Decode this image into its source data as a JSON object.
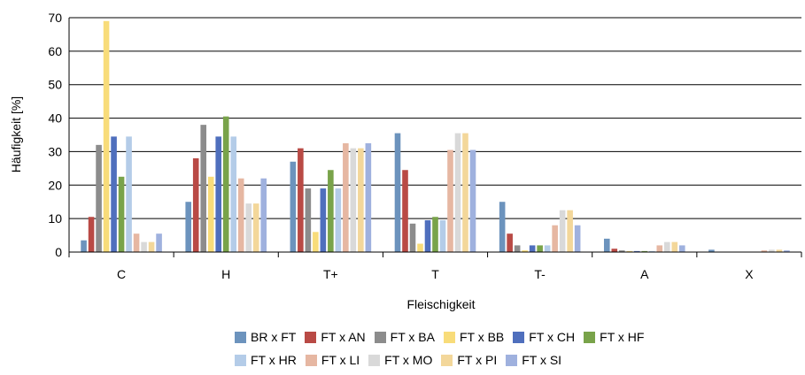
{
  "chart_data": {
    "type": "bar",
    "xlabel": "Fleischigkeit",
    "ylabel": "Häufigkeit [%]",
    "ylim": [
      0,
      70
    ],
    "yticks": [
      "0",
      "10",
      "20",
      "30",
      "40",
      "50",
      "60",
      "70"
    ],
    "grid": true,
    "legend_position": "bottom",
    "categories": [
      "C",
      "H",
      "T+",
      "T",
      "T-",
      "A",
      "X"
    ],
    "series": [
      {
        "name": "BR x FT",
        "color": "#6c93bd",
        "values": [
          3.5,
          15,
          27,
          35.5,
          15,
          4,
          0.7
        ]
      },
      {
        "name": "FT x AN",
        "color": "#b94a45",
        "values": [
          10.5,
          28,
          31,
          24.5,
          5.5,
          1,
          0
        ]
      },
      {
        "name": "FT x BA",
        "color": "#8c8c8c",
        "values": [
          32,
          38,
          19,
          8.5,
          2,
          0.5,
          0
        ]
      },
      {
        "name": "FT x BB",
        "color": "#f8dc7a",
        "values": [
          69,
          22.5,
          6,
          2.5,
          0.5,
          0.3,
          0
        ]
      },
      {
        "name": "FT x CH",
        "color": "#4f6fbd",
        "values": [
          34.5,
          34.5,
          19,
          9.5,
          2,
          0.3,
          0
        ]
      },
      {
        "name": "FT x HF",
        "color": "#79a34a",
        "values": [
          22.5,
          40.5,
          24.5,
          10.5,
          2,
          0.3,
          0
        ]
      },
      {
        "name": "FT x HR",
        "color": "#b4cce8",
        "values": [
          34.5,
          34.5,
          19,
          9.5,
          2,
          0.3,
          0
        ]
      },
      {
        "name": "FT x LI",
        "color": "#e6b7a2",
        "values": [
          5.5,
          22,
          32.5,
          30.5,
          8,
          2,
          0.5
        ]
      },
      {
        "name": "FT x MO",
        "color": "#d9d9d9",
        "values": [
          3,
          14.5,
          31,
          35.5,
          12.5,
          3,
          0.7
        ]
      },
      {
        "name": "FT x PI",
        "color": "#f3d79a",
        "values": [
          3,
          14.5,
          31,
          35.5,
          12.5,
          3,
          0.7
        ]
      },
      {
        "name": "FT x SI",
        "color": "#9fb1de",
        "values": [
          5.5,
          22,
          32.5,
          30.5,
          8,
          2,
          0.5
        ]
      }
    ]
  }
}
